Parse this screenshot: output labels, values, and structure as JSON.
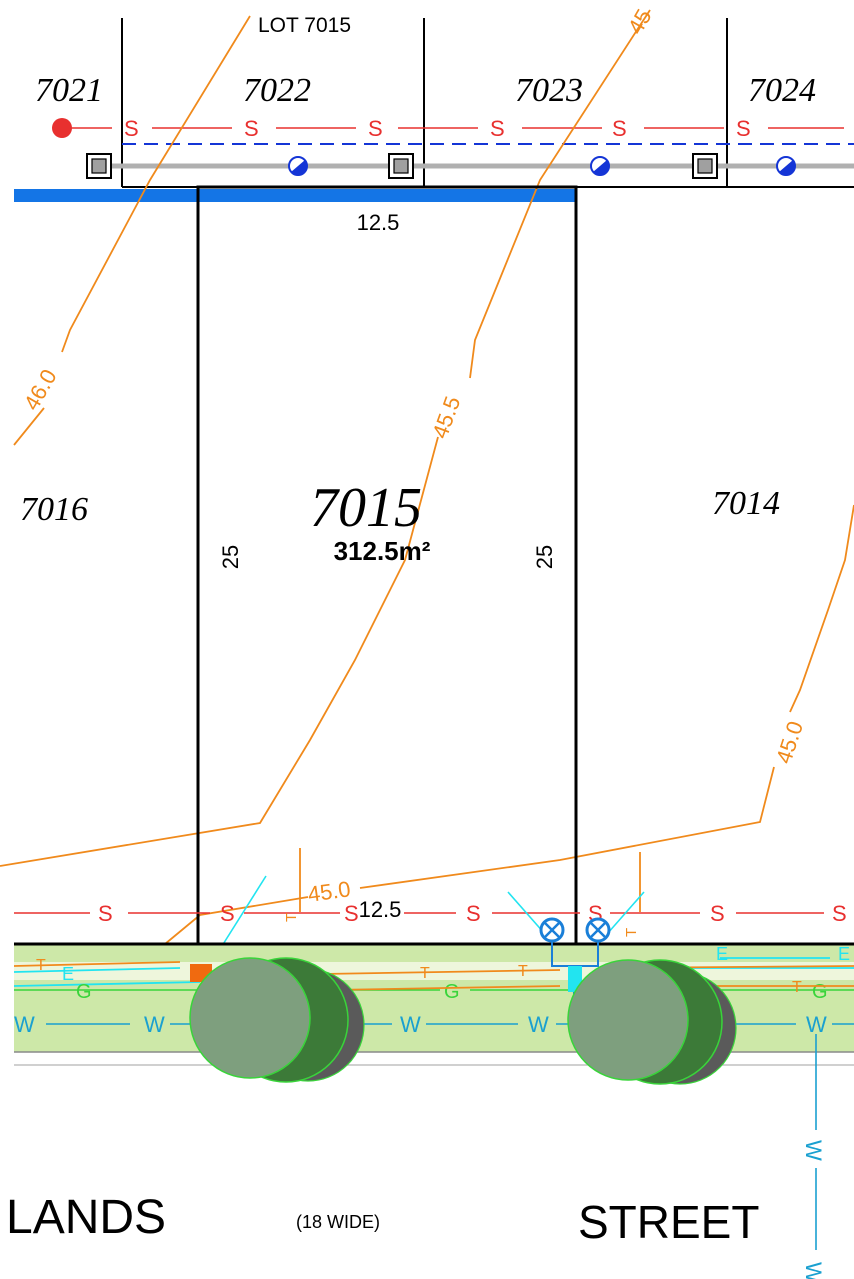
{
  "header_lot": "LOT 7015",
  "top_lots": [
    "7021",
    "7022",
    "7023",
    "7024"
  ],
  "main_lot": {
    "number": "7015",
    "area": "312.5m²",
    "front": "12.5",
    "back": "12.5",
    "left_side": "25",
    "right_side": "25"
  },
  "side_lots": {
    "left": "7016",
    "right": "7014"
  },
  "contours": [
    "46.0",
    "45.5",
    "45.0",
    "45.0",
    "45"
  ],
  "street": {
    "name_left": "LANDS",
    "name_right": "STREET",
    "width_note": "(18 WIDE)"
  },
  "service_letters": {
    "sewer": "S",
    "water": "W",
    "telecom": "T",
    "electric": "E",
    "gas": "G"
  },
  "colors": {
    "boundary": "#000000",
    "contour": "#f08a1c",
    "sewer": "#e8302f",
    "water": "#1aa0d0",
    "cyan": "#22e4f0",
    "verge": "#cde8a8",
    "verge_light": "#eef6dc",
    "drain": "#1475e6",
    "tree_light": "#7e9f7e",
    "tree_dark": "#3c7a38",
    "tree_shadow": "#5a5a5a",
    "tree_edge": "#39d43a"
  }
}
